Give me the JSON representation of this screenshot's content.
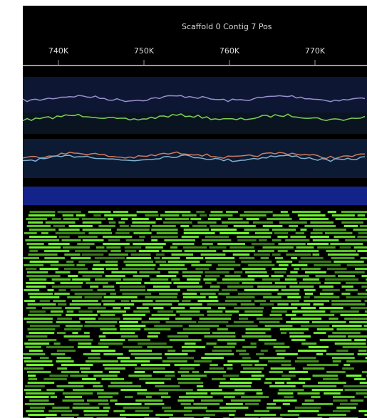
{
  "header": {
    "title": "Scaffold 0 Contig 7 Pos"
  },
  "ruler": {
    "labels": [
      "740K",
      "750K",
      "760K",
      "770K"
    ]
  }
}
